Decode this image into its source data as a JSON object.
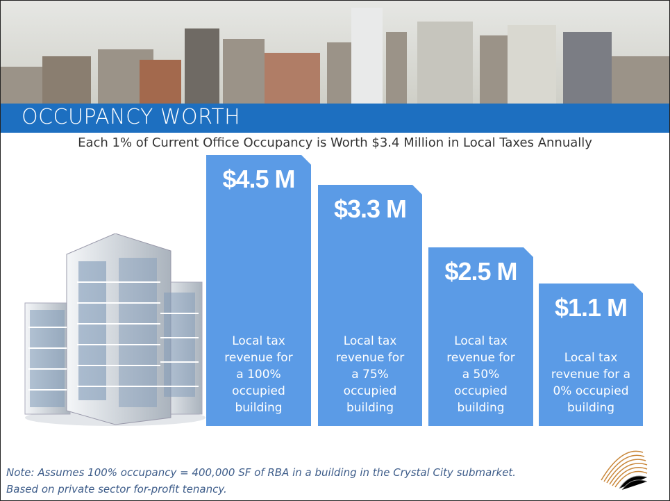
{
  "header": {
    "title": "OCCUPANCY WORTH"
  },
  "subtitle": "Each 1% of Current Office Occupancy is Worth $3.4 Million in Local Taxes Annually",
  "cards": [
    {
      "value": "$4.5 M",
      "description": "Local tax revenue for a 100% occupied building"
    },
    {
      "value": "$3.3 M",
      "description": "Local tax revenue for a 75% occupied building"
    },
    {
      "value": "$2.5 M",
      "description": "Local tax revenue for a 50% occupied building"
    },
    {
      "value": "$1.1 M",
      "description": "Local tax revenue for a 0% occupied building"
    }
  ],
  "note": {
    "line1": "Note: Assumes 100% occupancy = 400,000 SF of RBA in a building in the Crystal City submarket.",
    "line2": "Based on private sector for-profit tenancy."
  }
}
